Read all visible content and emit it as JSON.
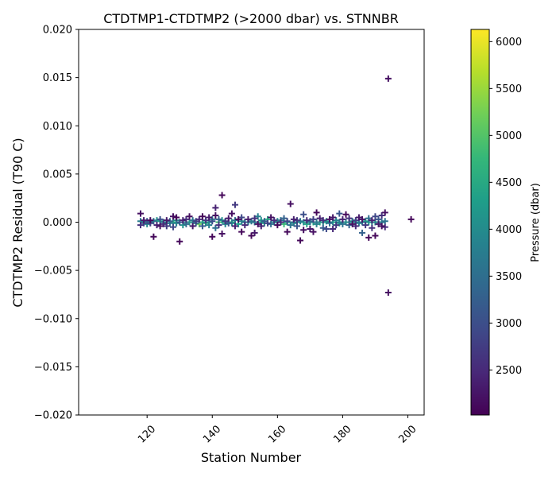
{
  "chart_data": {
    "type": "scatter",
    "title": "CTDTMP1-CTDTMP2 (>2000 dbar) vs. STNNBR",
    "xlabel": "Station Number",
    "ylabel": "CTDTMP2 Residual (T90 C)",
    "xlim": [
      99,
      205
    ],
    "ylim": [
      -0.02,
      0.02
    ],
    "x_ticks": [
      120,
      140,
      160,
      180,
      200
    ],
    "y_ticks": [
      -0.02,
      -0.015,
      -0.01,
      -0.005,
      0.0,
      0.005,
      0.01,
      0.015,
      0.02
    ],
    "x_tick_labels": [
      "120",
      "140",
      "160",
      "180",
      "200"
    ],
    "y_tick_labels": [
      "−0.020",
      "−0.015",
      "−0.010",
      "−0.005",
      "0.000",
      "0.005",
      "0.010",
      "0.015",
      "0.020"
    ],
    "marker": "+",
    "grid": false,
    "colorbar": {
      "label": "Pressure (dbar)",
      "range": [
        2020,
        6130
      ],
      "ticks": [
        2500,
        3000,
        3500,
        4000,
        4500,
        5000,
        5500,
        6000
      ],
      "tick_labels": [
        "2500",
        "3000",
        "3500",
        "4000",
        "4500",
        "5000",
        "5500",
        "6000"
      ],
      "colormap": "viridis",
      "colormap_stops": [
        "#440154",
        "#482878",
        "#3e4a89",
        "#31688e",
        "#26828e",
        "#1f9e89",
        "#35b779",
        "#6ece58",
        "#b5de2b",
        "#fde725"
      ]
    },
    "points": [
      [
        118,
        0.0009,
        2200
      ],
      [
        118,
        -0.0003,
        2600
      ],
      [
        118,
        0.0001,
        3800
      ],
      [
        119,
        0.0,
        4500
      ],
      [
        119,
        0.0002,
        2300
      ],
      [
        120,
        0.0001,
        3200
      ],
      [
        120,
        -0.0002,
        4000
      ],
      [
        121,
        0.0002,
        2100
      ],
      [
        121,
        -0.0001,
        2800
      ],
      [
        122,
        -0.0015,
        2100
      ],
      [
        122,
        0.0001,
        3500
      ],
      [
        123,
        -0.0003,
        2400
      ],
      [
        123,
        0.0002,
        4200
      ],
      [
        124,
        -0.0004,
        2200
      ],
      [
        124,
        0.0003,
        3000
      ],
      [
        125,
        -0.0002,
        2500
      ],
      [
        125,
        0.0,
        3700
      ],
      [
        126,
        0.0002,
        2300
      ],
      [
        126,
        -0.0004,
        2700
      ],
      [
        127,
        0.0001,
        3300
      ],
      [
        128,
        0.0006,
        2200
      ],
      [
        128,
        -0.0005,
        2900
      ],
      [
        129,
        0.0005,
        2100
      ],
      [
        129,
        -0.0001,
        3900
      ],
      [
        130,
        -0.002,
        2100
      ],
      [
        130,
        0.0,
        3100
      ],
      [
        131,
        0.0002,
        2400
      ],
      [
        131,
        -0.0003,
        4100
      ],
      [
        132,
        0.0003,
        2600
      ],
      [
        132,
        -0.0002,
        3400
      ],
      [
        133,
        0.0006,
        2200
      ],
      [
        133,
        0.0,
        4400
      ],
      [
        134,
        -0.0004,
        2300
      ],
      [
        134,
        0.0002,
        3600
      ],
      [
        135,
        0.0001,
        2800
      ],
      [
        136,
        -0.0002,
        5200
      ],
      [
        136,
        0.0003,
        2500
      ],
      [
        137,
        0.0006,
        2100
      ],
      [
        137,
        -0.0004,
        3200
      ],
      [
        138,
        0.0002,
        2700
      ],
      [
        138,
        -0.0001,
        4600
      ],
      [
        139,
        0.0005,
        2300
      ],
      [
        139,
        -0.0003,
        3800
      ],
      [
        140,
        -0.0015,
        2100
      ],
      [
        140,
        0.0001,
        3000
      ],
      [
        141,
        0.0015,
        2400
      ],
      [
        141,
        0.0007,
        2200
      ],
      [
        141,
        -0.0006,
        3500
      ],
      [
        142,
        0.0,
        4900
      ],
      [
        142,
        -0.0003,
        2600
      ],
      [
        142,
        0.0003,
        3300
      ],
      [
        143,
        0.0028,
        2100
      ],
      [
        143,
        -0.0012,
        2200
      ],
      [
        143,
        0.0002,
        4200
      ],
      [
        144,
        0.0001,
        2700
      ],
      [
        144,
        -0.0002,
        3900
      ],
      [
        145,
        0.0004,
        2300
      ],
      [
        145,
        -0.0001,
        3100
      ],
      [
        146,
        0.0009,
        2200
      ],
      [
        146,
        0.0,
        4700
      ],
      [
        147,
        0.0018,
        2700
      ],
      [
        147,
        -0.0004,
        2400
      ],
      [
        147,
        0.0002,
        3600
      ],
      [
        148,
        0.0003,
        2100
      ],
      [
        148,
        -0.0002,
        4300
      ],
      [
        149,
        -0.001,
        2100
      ],
      [
        149,
        0.0005,
        2900
      ],
      [
        150,
        0.0,
        3400
      ],
      [
        150,
        -0.0003,
        2500
      ],
      [
        151,
        0.0003,
        2300
      ],
      [
        152,
        -0.0014,
        2100
      ],
      [
        152,
        0.0001,
        3700
      ],
      [
        153,
        -0.0011,
        2300
      ],
      [
        153,
        0.0004,
        2600
      ],
      [
        154,
        0.0006,
        3800
      ],
      [
        154,
        -0.0002,
        2200
      ],
      [
        155,
        0.0002,
        4100
      ],
      [
        155,
        -0.0004,
        2400
      ],
      [
        156,
        0.0001,
        3200
      ],
      [
        157,
        -0.0001,
        2800
      ],
      [
        157,
        0.0003,
        4500
      ],
      [
        158,
        0.0005,
        2200
      ],
      [
        158,
        -0.0002,
        3500
      ],
      [
        159,
        0.0002,
        2600
      ],
      [
        160,
        -0.0003,
        2100
      ],
      [
        160,
        0.0001,
        3900
      ],
      [
        161,
        0.0,
        2500
      ],
      [
        162,
        0.0004,
        3300
      ],
      [
        162,
        -0.0002,
        4800
      ],
      [
        163,
        -0.001,
        2100
      ],
      [
        163,
        0.0001,
        2900
      ],
      [
        164,
        0.0019,
        2200
      ],
      [
        164,
        -0.0003,
        3600
      ],
      [
        165,
        0.0003,
        2400
      ],
      [
        165,
        -0.0001,
        4200
      ],
      [
        166,
        0.0002,
        2700
      ],
      [
        166,
        -0.0004,
        3100
      ],
      [
        167,
        -0.0019,
        2100
      ],
      [
        167,
        0.0001,
        3700
      ],
      [
        168,
        0.0008,
        3000
      ],
      [
        168,
        -0.0008,
        2200
      ],
      [
        169,
        0.0002,
        2500
      ],
      [
        169,
        -0.0002,
        4400
      ],
      [
        170,
        -0.0007,
        2300
      ],
      [
        170,
        0.0001,
        3400
      ],
      [
        171,
        -0.001,
        2200
      ],
      [
        171,
        0.0003,
        2800
      ],
      [
        172,
        0.001,
        2100
      ],
      [
        172,
        -0.0002,
        3900
      ],
      [
        173,
        0.0004,
        2400
      ],
      [
        173,
        0.0,
        4600
      ],
      [
        174,
        -0.0006,
        3200
      ],
      [
        174,
        0.0002,
        2600
      ],
      [
        175,
        0.0001,
        4100
      ],
      [
        175,
        -0.0007,
        2900
      ],
      [
        176,
        0.0003,
        2200
      ],
      [
        176,
        -0.0001,
        3500
      ],
      [
        177,
        0.0005,
        2300
      ],
      [
        177,
        -0.0007,
        2500
      ],
      [
        178,
        0.0002,
        3800
      ],
      [
        178,
        -0.0003,
        2700
      ],
      [
        179,
        0.0009,
        3100
      ],
      [
        179,
        -0.0001,
        4300
      ],
      [
        180,
        0.0003,
        2400
      ],
      [
        180,
        -0.0002,
        3600
      ],
      [
        181,
        0.0008,
        2100
      ],
      [
        181,
        0.0,
        4000
      ],
      [
        182,
        0.0004,
        2600
      ],
      [
        182,
        -0.0003,
        3300
      ],
      [
        183,
        -0.0002,
        2200
      ],
      [
        183,
        0.0001,
        3900
      ],
      [
        184,
        0.0002,
        2800
      ],
      [
        184,
        -0.0004,
        2500
      ],
      [
        185,
        0.0005,
        2300
      ],
      [
        185,
        -0.0001,
        3700
      ],
      [
        186,
        -0.0011,
        3300
      ],
      [
        186,
        0.0003,
        2200
      ],
      [
        187,
        0.0001,
        4200
      ],
      [
        187,
        -0.0003,
        2700
      ],
      [
        188,
        -0.0016,
        2100
      ],
      [
        188,
        0.0004,
        3500
      ],
      [
        189,
        0.0002,
        2400
      ],
      [
        189,
        -0.0006,
        2600
      ],
      [
        190,
        -0.0014,
        2100
      ],
      [
        190,
        0.0006,
        2900
      ],
      [
        191,
        0.0003,
        3100
      ],
      [
        191,
        -0.0002,
        2300
      ],
      [
        192,
        0.0007,
        2600
      ],
      [
        192,
        -0.0004,
        2200
      ],
      [
        193,
        0.001,
        2200
      ],
      [
        193,
        0.0001,
        3600
      ],
      [
        193,
        -0.0005,
        2500
      ],
      [
        194,
        0.0149,
        2200
      ],
      [
        194,
        -0.0073,
        2200
      ],
      [
        201,
        0.0003,
        2100
      ],
      [
        119,
        -0.0001,
        3000
      ],
      [
        121,
        0.0,
        4100
      ],
      [
        124,
        0.0001,
        4300
      ],
      [
        127,
        -0.0001,
        3700
      ],
      [
        129,
        0.0002,
        4000
      ],
      [
        132,
        0.0,
        3900
      ],
      [
        135,
        -0.0001,
        3400
      ],
      [
        138,
        0.0,
        4200
      ],
      [
        140,
        0.0003,
        3800
      ],
      [
        144,
        0.0,
        4400
      ],
      [
        146,
        -0.0001,
        3900
      ],
      [
        149,
        0.0001,
        4000
      ],
      [
        151,
        0.0,
        3700
      ],
      [
        153,
        0.0,
        3600
      ],
      [
        156,
        -0.0001,
        4200
      ],
      [
        159,
        0.0,
        3900
      ],
      [
        161,
        0.0002,
        3800
      ],
      [
        163,
        0.0,
        4300
      ],
      [
        165,
        0.0,
        3600
      ],
      [
        168,
        0.0,
        4100
      ],
      [
        170,
        0.0,
        4000
      ],
      [
        172,
        0.0,
        3700
      ],
      [
        174,
        0.0,
        4200
      ],
      [
        176,
        0.0,
        3900
      ],
      [
        179,
        0.0,
        3800
      ],
      [
        182,
        0.0,
        4300
      ],
      [
        184,
        0.0,
        4000
      ],
      [
        186,
        0.0,
        3600
      ],
      [
        188,
        0.0,
        4100
      ],
      [
        190,
        0.0,
        3900
      ],
      [
        192,
        0.0,
        3700
      ],
      [
        128,
        0.0,
        4500
      ],
      [
        134,
        0.0,
        4100
      ],
      [
        139,
        0.0,
        4000
      ],
      [
        145,
        0.0,
        4600
      ],
      [
        150,
        0.0,
        4300
      ],
      [
        155,
        0.0,
        4400
      ],
      [
        160,
        0.0,
        4200
      ],
      [
        166,
        0.0,
        4000
      ],
      [
        171,
        0.0,
        4500
      ],
      [
        177,
        0.0,
        4300
      ],
      [
        183,
        0.0,
        4100
      ],
      [
        189,
        0.0,
        4200
      ],
      [
        126,
        -0.0001,
        4200
      ],
      [
        137,
        0.0,
        4500
      ]
    ]
  }
}
